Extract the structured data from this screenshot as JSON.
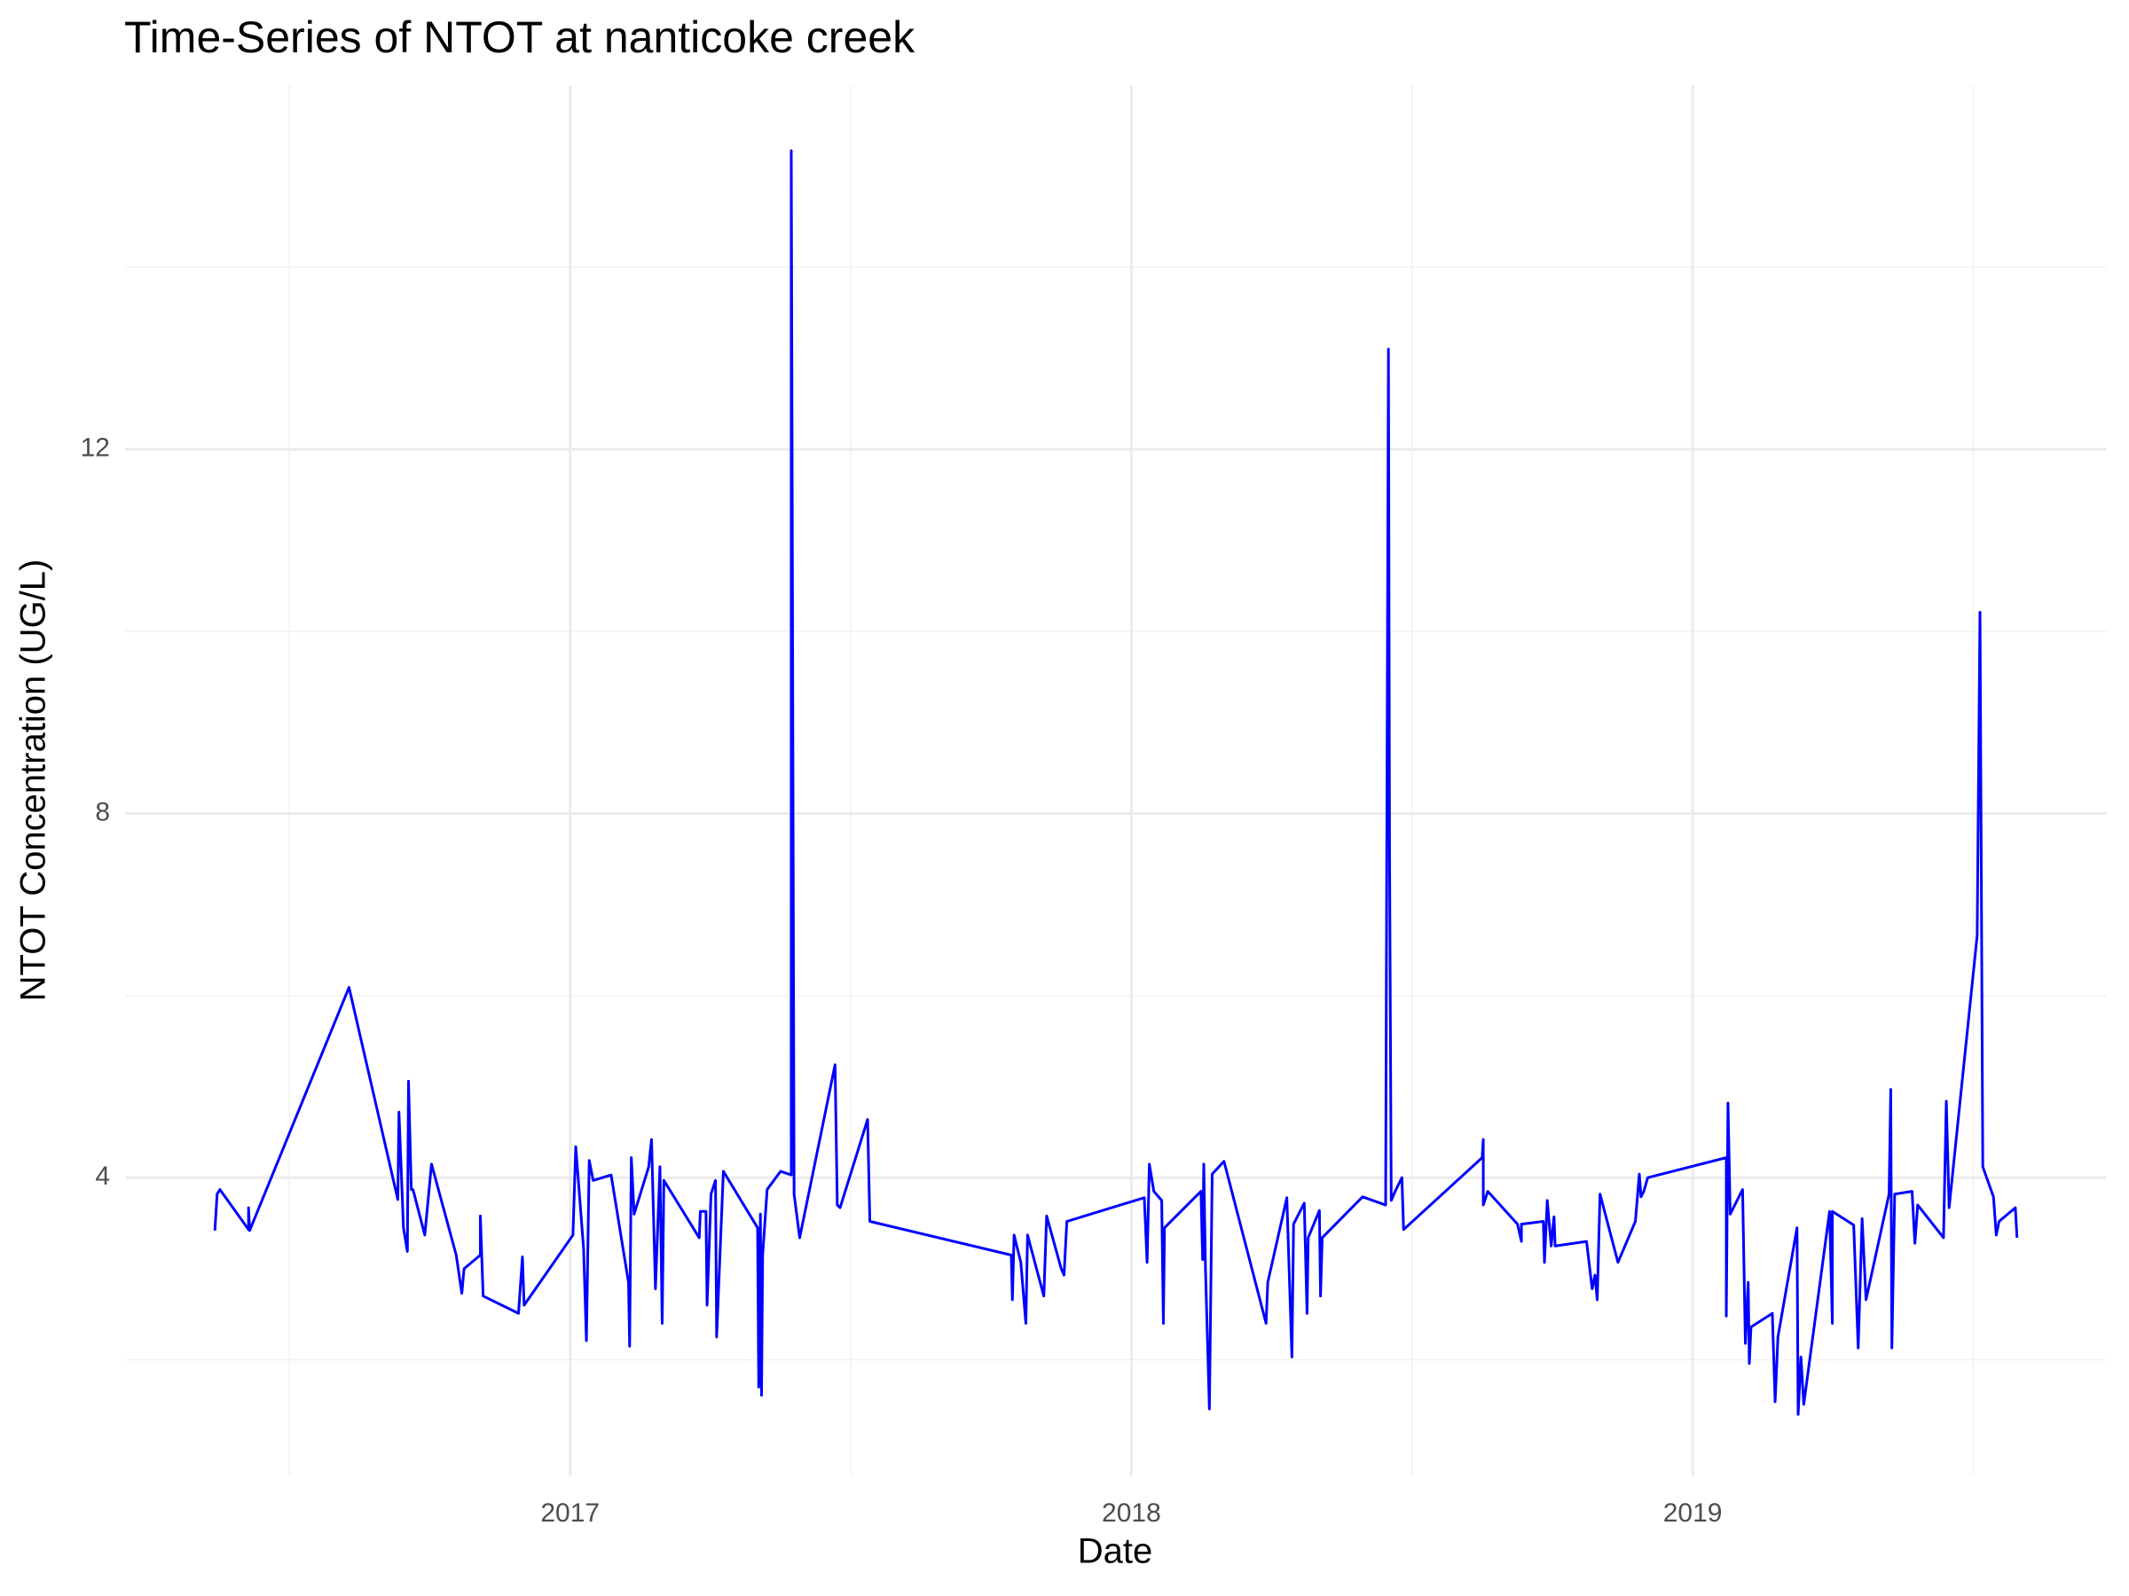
{
  "chart_data": {
    "type": "line",
    "title": "Time-Series of NTOT at nanticoke creek",
    "x_label": "Date",
    "y_label": "NTOT Concentration (UG/L)",
    "color": "#0000ff",
    "grid": true,
    "xlim": [
      2016.207,
      2019.738
    ],
    "ylim": [
      0.73,
      16.0
    ],
    "xticks": [
      2017,
      2018,
      2019
    ],
    "yticks": [
      4,
      8,
      12
    ],
    "x": [
      2016.367,
      2016.371,
      2016.376,
      2016.427,
      2016.427,
      2016.429,
      2016.606,
      2016.693,
      2016.695,
      2016.703,
      2016.71,
      2016.712,
      2016.717,
      2016.72,
      2016.741,
      2016.753,
      2016.797,
      2016.807,
      2016.811,
      2016.84,
      2016.84,
      2016.845,
      2016.908,
      2016.915,
      2016.918,
      2017.005,
      2017.01,
      2017.024,
      2017.029,
      2017.034,
      2017.041,
      2017.073,
      2017.104,
      2017.106,
      2017.109,
      2017.114,
      2017.14,
      2017.145,
      2017.152,
      2017.16,
      2017.164,
      2017.167,
      2017.23,
      2017.232,
      2017.242,
      2017.244,
      2017.251,
      2017.259,
      2017.261,
      2017.273,
      2017.334,
      2017.336,
      2017.339,
      2017.341,
      2017.343,
      2017.351,
      2017.375,
      2017.394,
      2017.394,
      2017.399,
      2017.409,
      2017.472,
      2017.476,
      2017.481,
      2017.53,
      2017.534,
      2017.786,
      2017.788,
      2017.791,
      2017.803,
      2017.812,
      2017.815,
      2017.844,
      2017.849,
      2017.875,
      2017.88,
      2017.885,
      2018.023,
      2018.028,
      2018.032,
      2018.04,
      2018.054,
      2018.057,
      2018.059,
      2018.124,
      2018.127,
      2018.129,
      2018.132,
      2018.139,
      2018.144,
      2018.165,
      2018.24,
      2018.243,
      2018.277,
      2018.286,
      2018.289,
      2018.308,
      2018.313,
      2018.315,
      2018.335,
      2018.337,
      2018.34,
      2018.412,
      2018.453,
      2018.458,
      2018.46,
      2018.463,
      2018.47,
      2018.482,
      2018.485,
      2018.625,
      2018.627,
      2018.627,
      2018.635,
      2018.688,
      2018.695,
      2018.695,
      2018.734,
      2018.736,
      2018.741,
      2018.748,
      2018.753,
      2018.755,
      2018.811,
      2018.821,
      2018.826,
      2018.83,
      2018.835,
      2018.867,
      2018.898,
      2018.905,
      2018.908,
      2018.913,
      2018.92,
      2019.06,
      2019.06,
      2019.063,
      2019.067,
      2019.089,
      2019.094,
      2019.099,
      2019.101,
      2019.104,
      2019.142,
      2019.147,
      2019.152,
      2019.186,
      2019.188,
      2019.193,
      2019.198,
      2019.244,
      2019.249,
      2019.249,
      2019.287,
      2019.295,
      2019.302,
      2019.309,
      2019.321,
      2019.35,
      2019.353,
      2019.355,
      2019.36,
      2019.391,
      2019.396,
      2019.401,
      2019.447,
      2019.452,
      2019.457,
      2019.507,
      2019.512,
      2019.517,
      2019.536,
      2019.541,
      2019.546,
      2019.575,
      2019.578
    ],
    "values": [
      3.42,
      3.82,
      3.87,
      3.43,
      3.67,
      3.42,
      6.09,
      3.76,
      4.72,
      3.45,
      3.19,
      5.06,
      3.87,
      3.87,
      3.37,
      4.15,
      3.15,
      2.73,
      3.0,
      3.15,
      3.58,
      2.7,
      2.51,
      3.13,
      2.6,
      3.37,
      4.34,
      3.22,
      2.21,
      4.19,
      3.97,
      4.03,
      2.85,
      2.15,
      4.22,
      3.6,
      4.12,
      4.42,
      2.78,
      4.12,
      2.4,
      3.97,
      3.34,
      3.63,
      3.63,
      2.6,
      3.82,
      3.97,
      2.25,
      4.07,
      3.45,
      1.7,
      3.6,
      1.61,
      3.15,
      3.87,
      4.07,
      4.03,
      15.28,
      3.82,
      3.34,
      5.24,
      3.7,
      3.67,
      4.64,
      3.52,
      3.15,
      2.66,
      3.37,
      3.07,
      2.4,
      3.37,
      2.7,
      3.58,
      3.0,
      2.93,
      3.52,
      3.78,
      3.07,
      4.15,
      3.85,
      3.75,
      2.4,
      3.45,
      3.85,
      3.1,
      4.15,
      3.0,
      1.46,
      4.04,
      4.18,
      2.4,
      2.85,
      3.78,
      2.03,
      3.49,
      3.72,
      2.51,
      3.34,
      3.64,
      2.7,
      3.34,
      3.79,
      3.7,
      13.1,
      7.55,
      3.75,
      3.85,
      4.0,
      3.43,
      4.22,
      4.42,
      3.7,
      3.85,
      3.49,
      3.3,
      3.49,
      3.52,
      3.07,
      3.75,
      3.25,
      3.57,
      3.25,
      3.3,
      2.78,
      2.93,
      2.66,
      3.82,
      3.07,
      3.52,
      4.04,
      3.79,
      3.85,
      4.0,
      4.22,
      2.48,
      4.82,
      3.6,
      3.87,
      2.18,
      2.85,
      1.96,
      2.36,
      2.51,
      1.54,
      2.25,
      3.45,
      1.4,
      2.03,
      1.51,
      3.63,
      2.4,
      3.63,
      3.48,
      2.13,
      3.55,
      2.66,
      3.0,
      3.82,
      4.97,
      2.13,
      3.82,
      3.85,
      3.28,
      3.7,
      3.34,
      4.84,
      3.67,
      6.66,
      10.21,
      4.12,
      3.79,
      3.37,
      3.52,
      3.67,
      3.34
    ]
  }
}
